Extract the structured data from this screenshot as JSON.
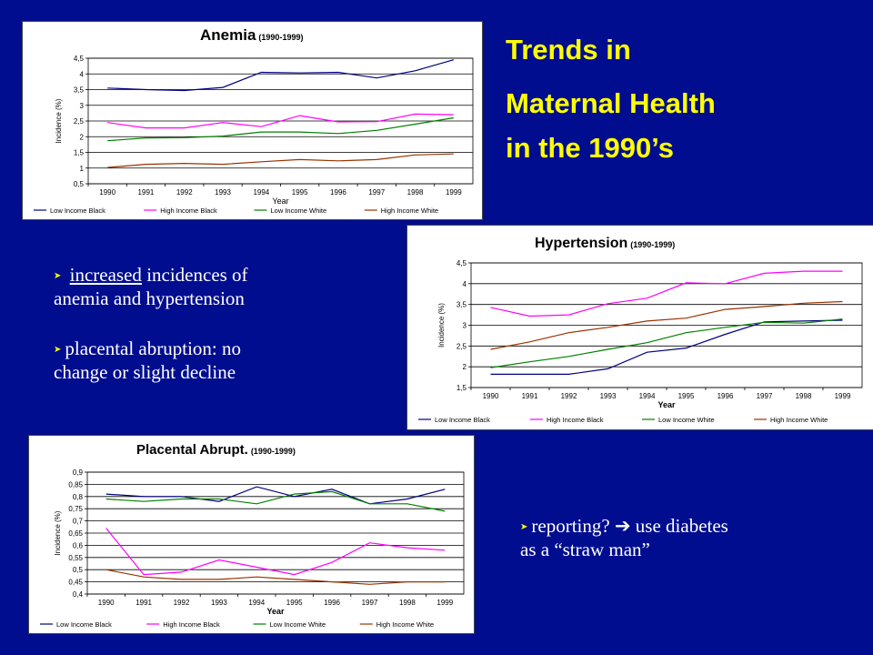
{
  "slide": {
    "background_color": "#000d8f",
    "title_color": "#ffff00",
    "title_lines": [
      "Trends in",
      "Maternal Health",
      "in the 1990’s"
    ],
    "bullet1_prefix": " ",
    "bullet1_underlined": "increased",
    "bullet1_rest": " incidences of",
    "bullet1_line2": "anemia and hypertension",
    "bullet2_line1": "placental abruption: no",
    "bullet2_line2": "change or slight decline",
    "bullet3_line1_a": "reporting? ",
    "bullet3_line1_b": " use diabetes",
    "bullet3_line2": "as a “straw man”",
    "bullet_icon": "arrowhead-bullet-icon",
    "right_arrow_icon": "right-arrow-icon"
  },
  "chart_data": [
    {
      "type": "line",
      "title": "Anemia",
      "title_suffix": "(1990-1999)",
      "xlabel": "Year",
      "ylabel": "Incidence (%)",
      "categories": [
        "1990",
        "1991",
        "1992",
        "1993",
        "1994",
        "1995",
        "1996",
        "1997",
        "1998",
        "1999"
      ],
      "ylim": [
        0.5,
        4.5
      ],
      "yticks": [
        "0,5",
        "1",
        "1,5",
        "2",
        "2,5",
        "3",
        "3,5",
        "4",
        "4,5"
      ],
      "grid": true,
      "legend_position": "bottom",
      "series": [
        {
          "name": "Low Income Black",
          "color": "#000080",
          "values": [
            3.55,
            3.5,
            3.47,
            3.57,
            4.05,
            4.03,
            4.05,
            3.87,
            4.1,
            4.45
          ]
        },
        {
          "name": "High Income Black",
          "color": "#ff00ff",
          "values": [
            2.45,
            2.28,
            2.28,
            2.45,
            2.32,
            2.67,
            2.47,
            2.48,
            2.72,
            2.7
          ]
        },
        {
          "name": "Low Income White",
          "color": "#008000",
          "values": [
            1.87,
            1.96,
            1.97,
            2.02,
            2.15,
            2.15,
            2.1,
            2.2,
            2.4,
            2.6
          ]
        },
        {
          "name": "High Income White",
          "color": "#993300",
          "values": [
            1.02,
            1.12,
            1.15,
            1.12,
            1.2,
            1.27,
            1.23,
            1.27,
            1.42,
            1.45
          ]
        }
      ]
    },
    {
      "type": "line",
      "title": "Hypertension",
      "title_suffix": "(1990-1999)",
      "xlabel": "Year",
      "ylabel": "Incidence (%)",
      "categories": [
        "1990",
        "1991",
        "1992",
        "1993",
        "1994",
        "1995",
        "1996",
        "1997",
        "1998",
        "1999"
      ],
      "ylim": [
        1.5,
        4.5
      ],
      "yticks": [
        "1,5",
        "2",
        "2,5",
        "3",
        "3,5",
        "4",
        "4,5"
      ],
      "grid": true,
      "legend_position": "bottom",
      "series": [
        {
          "name": "Low Income Black",
          "color": "#000080",
          "values": [
            1.82,
            1.82,
            1.82,
            1.95,
            2.35,
            2.45,
            2.78,
            3.08,
            3.1,
            3.12
          ]
        },
        {
          "name": "High Income Black",
          "color": "#ff00ff",
          "values": [
            3.43,
            3.22,
            3.25,
            3.52,
            3.65,
            4.02,
            4.0,
            4.25,
            4.3,
            4.3
          ]
        },
        {
          "name": "Low Income White",
          "color": "#008000",
          "values": [
            1.98,
            2.12,
            2.25,
            2.42,
            2.58,
            2.82,
            2.95,
            3.07,
            3.05,
            3.15
          ]
        },
        {
          "name": "High Income White",
          "color": "#993300",
          "values": [
            2.42,
            2.6,
            2.82,
            2.95,
            3.1,
            3.17,
            3.38,
            3.45,
            3.53,
            3.57
          ]
        }
      ]
    },
    {
      "type": "line",
      "title": "Placental Abrupt.",
      "title_suffix": "(1990-1999)",
      "xlabel": "Year",
      "ylabel": "Incidence (%)",
      "categories": [
        "1990",
        "1991",
        "1992",
        "1993",
        "1994",
        "1995",
        "1996",
        "1997",
        "1998",
        "1999"
      ],
      "ylim": [
        0.4,
        0.9
      ],
      "yticks": [
        "0,4",
        "0,45",
        "0,5",
        "0,55",
        "0,6",
        "0,65",
        "0,7",
        "0,75",
        "0,8",
        "0,85",
        "0,9"
      ],
      "grid": true,
      "legend_position": "bottom",
      "series": [
        {
          "name": "Low Income Black",
          "color": "#000080",
          "values": [
            0.81,
            0.8,
            0.8,
            0.78,
            0.84,
            0.8,
            0.83,
            0.77,
            0.79,
            0.83
          ]
        },
        {
          "name": "High Income Black",
          "color": "#ff00ff",
          "values": [
            0.67,
            0.48,
            0.49,
            0.54,
            0.51,
            0.48,
            0.53,
            0.61,
            0.59,
            0.58
          ]
        },
        {
          "name": "Low Income White",
          "color": "#008000",
          "values": [
            0.79,
            0.78,
            0.79,
            0.79,
            0.77,
            0.81,
            0.82,
            0.77,
            0.77,
            0.74
          ]
        },
        {
          "name": "High Income White",
          "color": "#993300",
          "values": [
            0.5,
            0.47,
            0.46,
            0.46,
            0.47,
            0.46,
            0.45,
            0.44,
            0.45,
            0.45
          ]
        }
      ]
    }
  ]
}
